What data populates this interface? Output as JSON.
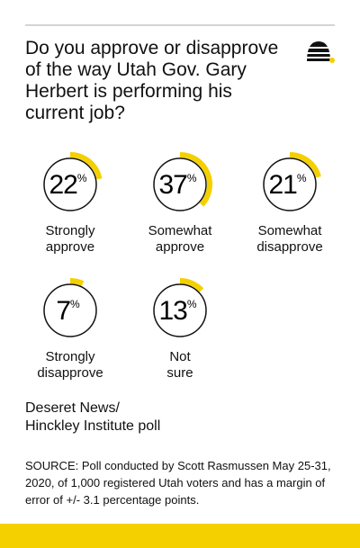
{
  "chart_data": {
    "type": "ring",
    "title": "Do you approve or disapprove of the way Utah Gov. Gary Herbert is performing his current job?",
    "categories": [
      "Strongly approve",
      "Somewhat approve",
      "Somewhat disapprove",
      "Strongly disapprove",
      "Not sure"
    ],
    "values": [
      22,
      37,
      21,
      7,
      13
    ],
    "unit": "%",
    "color": "#f4d000",
    "attribution": [
      "Deseret News/",
      "Hinckley Institute poll"
    ],
    "source": "SOURCE: Poll conducted by Scott Rasmussen May 25-31, 2020, of 1,000 registered Utah voters and has a margin of error of +/- 3.1 percentage points."
  }
}
